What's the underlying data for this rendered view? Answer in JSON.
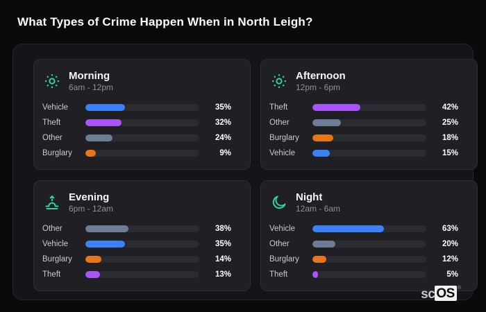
{
  "page": {
    "title": "What Types of Crime Happen When in North Leigh?"
  },
  "brand": {
    "prefix": "sc",
    "suffix": "OS",
    "registered": "®"
  },
  "palette": {
    "vehicle": "#3b82f6",
    "theft": "#a855f7",
    "other": "#6d7d96",
    "burglary": "#e8751a",
    "accent_icon": "#2dd4a0"
  },
  "chart_data": [
    {
      "type": "bar",
      "orientation": "horizontal",
      "title": "Morning",
      "subtitle": "6am - 12pm",
      "icon": "sun-icon",
      "categories": [
        "Vehicle",
        "Theft",
        "Other",
        "Burglary"
      ],
      "values": [
        35,
        32,
        24,
        9
      ],
      "value_labels": [
        "35%",
        "32%",
        "24%",
        "9%"
      ],
      "colors": [
        "#3b82f6",
        "#a855f7",
        "#6d7d96",
        "#e8751a"
      ],
      "xlim": [
        0,
        100
      ],
      "grid": false,
      "legend": false
    },
    {
      "type": "bar",
      "orientation": "horizontal",
      "title": "Afternoon",
      "subtitle": "12pm - 6pm",
      "icon": "sun-icon",
      "categories": [
        "Theft",
        "Other",
        "Burglary",
        "Vehicle"
      ],
      "values": [
        42,
        25,
        18,
        15
      ],
      "value_labels": [
        "42%",
        "25%",
        "18%",
        "15%"
      ],
      "colors": [
        "#a855f7",
        "#6d7d96",
        "#e8751a",
        "#3b82f6"
      ],
      "xlim": [
        0,
        100
      ],
      "grid": false,
      "legend": false
    },
    {
      "type": "bar",
      "orientation": "horizontal",
      "title": "Evening",
      "subtitle": "6pm - 12am",
      "icon": "sunset-icon",
      "categories": [
        "Other",
        "Vehicle",
        "Burglary",
        "Theft"
      ],
      "values": [
        38,
        35,
        14,
        13
      ],
      "value_labels": [
        "38%",
        "35%",
        "14%",
        "13%"
      ],
      "colors": [
        "#6d7d96",
        "#3b82f6",
        "#e8751a",
        "#a855f7"
      ],
      "xlim": [
        0,
        100
      ],
      "grid": false,
      "legend": false
    },
    {
      "type": "bar",
      "orientation": "horizontal",
      "title": "Night",
      "subtitle": "12am - 6am",
      "icon": "moon-icon",
      "categories": [
        "Vehicle",
        "Other",
        "Burglary",
        "Theft"
      ],
      "values": [
        63,
        20,
        12,
        5
      ],
      "value_labels": [
        "63%",
        "20%",
        "12%",
        "5%"
      ],
      "colors": [
        "#3b82f6",
        "#6d7d96",
        "#e8751a",
        "#a855f7"
      ],
      "xlim": [
        0,
        100
      ],
      "grid": false,
      "legend": false
    }
  ]
}
